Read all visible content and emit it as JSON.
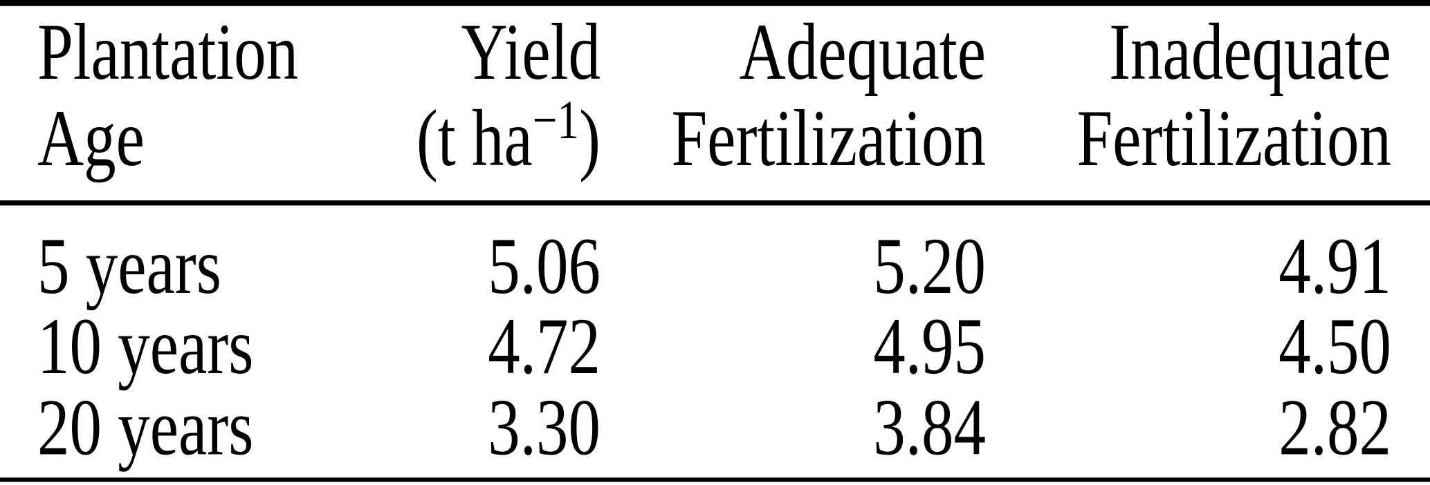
{
  "colors": {
    "background": "#ffffff",
    "text": "#000000",
    "rule": "#000000"
  },
  "table": {
    "columns": [
      {
        "lines": [
          "Plantation",
          "Age"
        ],
        "align": "left"
      },
      {
        "lines": [
          "Yield"
        ],
        "unit_prefix": "(t ha",
        "unit_sup": "−1",
        "unit_suffix": ")",
        "align": "right"
      },
      {
        "lines": [
          "Adequate",
          "Fertilization"
        ],
        "align": "right"
      },
      {
        "lines": [
          "Inadequate",
          "Fertilization"
        ],
        "align": "right"
      }
    ],
    "rows": [
      {
        "cells": [
          "5 years",
          "5.06",
          "5.20",
          "4.91"
        ]
      },
      {
        "cells": [
          "10 years",
          "4.72",
          "4.95",
          "4.50"
        ]
      },
      {
        "cells": [
          "20 years",
          "3.30",
          "3.84",
          "2.82"
        ]
      }
    ]
  }
}
